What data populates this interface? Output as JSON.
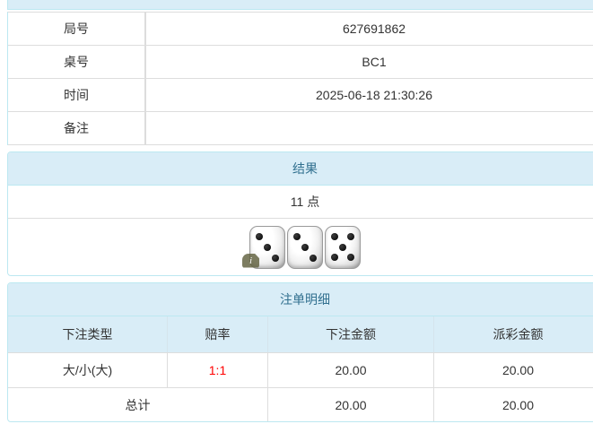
{
  "colors": {
    "heading_bg": "#d9edf7",
    "heading_text": "#31708f",
    "panel_border": "#bce8f1",
    "table_border": "#dddddd",
    "body_text": "#333333",
    "odds_red": "#ff0000"
  },
  "info_table": {
    "rows": [
      {
        "label": "局号",
        "value": "627691862"
      },
      {
        "label": "桌号",
        "value": "BC1"
      },
      {
        "label": "时间",
        "value": "2025-06-18 21:30:26"
      },
      {
        "label": "备注",
        "value": ""
      }
    ]
  },
  "result_panel": {
    "title": "结果",
    "points": "11 点",
    "dice": [
      3,
      3,
      5
    ],
    "info_icon": "i"
  },
  "bets_panel": {
    "title": "注单明细",
    "columns": [
      "下注类型",
      "赔率",
      "下注金额",
      "派彩金额"
    ],
    "rows": [
      {
        "type": "大/小(大)",
        "odds": "1:1",
        "bet": "20.00",
        "payout": "20.00"
      }
    ],
    "total": {
      "label": "总计",
      "bet": "20.00",
      "payout": "20.00"
    }
  }
}
